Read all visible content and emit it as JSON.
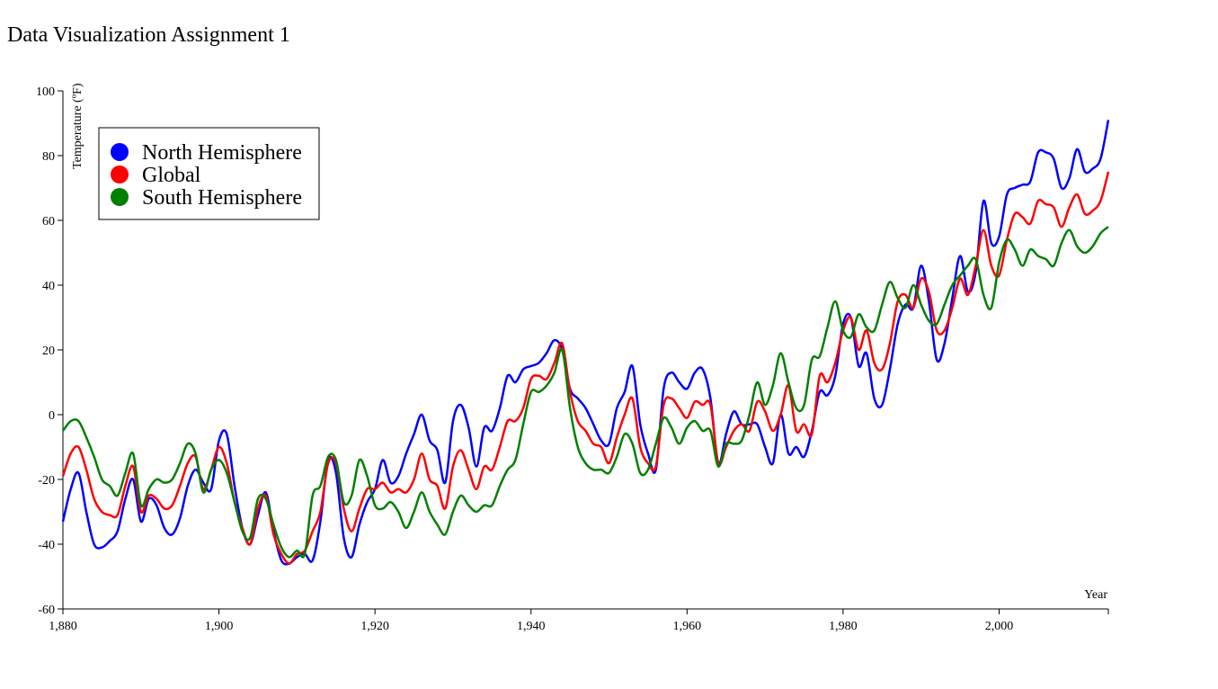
{
  "chart_data": {
    "type": "line",
    "title": "Data Visualization Assignment 1",
    "x_label": "Year",
    "y_label": "Temperature (ºF)",
    "xlim": [
      1880,
      2014
    ],
    "ylim": [
      -60,
      100
    ],
    "xticks": [
      {
        "value": 1880,
        "label": "1,880"
      },
      {
        "value": 1900,
        "label": "1,900"
      },
      {
        "value": 1920,
        "label": "1,920"
      },
      {
        "value": 1940,
        "label": "1,940"
      },
      {
        "value": 1960,
        "label": "1,960"
      },
      {
        "value": 1980,
        "label": "1,980"
      },
      {
        "value": 2000,
        "label": "2,000"
      }
    ],
    "yticks": [
      -60,
      -40,
      -20,
      0,
      20,
      40,
      60,
      80,
      100
    ],
    "legend": "top-left",
    "x": [
      1880,
      1881,
      1882,
      1883,
      1884,
      1885,
      1886,
      1887,
      1888,
      1889,
      1890,
      1891,
      1892,
      1893,
      1894,
      1895,
      1896,
      1897,
      1898,
      1899,
      1900,
      1901,
      1902,
      1903,
      1904,
      1905,
      1906,
      1907,
      1908,
      1909,
      1910,
      1911,
      1912,
      1913,
      1914,
      1915,
      1916,
      1917,
      1918,
      1919,
      1920,
      1921,
      1922,
      1923,
      1924,
      1925,
      1926,
      1927,
      1928,
      1929,
      1930,
      1931,
      1932,
      1933,
      1934,
      1935,
      1936,
      1937,
      1938,
      1939,
      1940,
      1941,
      1942,
      1943,
      1944,
      1945,
      1946,
      1947,
      1948,
      1949,
      1950,
      1951,
      1952,
      1953,
      1954,
      1955,
      1956,
      1957,
      1958,
      1959,
      1960,
      1961,
      1962,
      1963,
      1964,
      1965,
      1966,
      1967,
      1968,
      1969,
      1970,
      1971,
      1972,
      1973,
      1974,
      1975,
      1976,
      1977,
      1978,
      1979,
      1980,
      1981,
      1982,
      1983,
      1984,
      1985,
      1986,
      1987,
      1988,
      1989,
      1990,
      1991,
      1992,
      1993,
      1994,
      1995,
      1996,
      1997,
      1998,
      1999,
      2000,
      2001,
      2002,
      2003,
      2004,
      2005,
      2006,
      2007,
      2008,
      2009,
      2010,
      2011,
      2012,
      2013,
      2014
    ],
    "series": [
      {
        "name": "North Hemisphere",
        "color": "#0000ff",
        "values": [
          -33,
          -23,
          -18,
          -30,
          -40,
          -41,
          -39,
          -36,
          -26,
          -20,
          -33,
          -26,
          -28,
          -35,
          -37,
          -32,
          -22,
          -17,
          -21,
          -23,
          -8,
          -6,
          -22,
          -35,
          -40,
          -31,
          -24,
          -36,
          -45,
          -46,
          -44,
          -43,
          -45,
          -33,
          -14,
          -18,
          -38,
          -44,
          -34,
          -27,
          -23,
          -14,
          -21,
          -19,
          -12,
          -6,
          0,
          -8,
          -11,
          -21,
          -2,
          3,
          -4,
          -16,
          -4,
          -5,
          2,
          12,
          10,
          14,
          15,
          16,
          19,
          23,
          20,
          8,
          5,
          2,
          -3,
          -8,
          -9,
          2,
          7,
          15,
          -3,
          -12,
          -17,
          8,
          13,
          10,
          8,
          13,
          14,
          5,
          -15,
          -6,
          1,
          -3,
          -3,
          -3,
          -10,
          -15,
          0,
          -12,
          -10,
          -13,
          -5,
          7,
          6,
          12,
          28,
          30,
          15,
          19,
          5,
          3,
          14,
          28,
          34,
          33,
          46,
          35,
          17,
          22,
          36,
          49,
          38,
          44,
          66,
          53,
          55,
          68,
          70,
          71,
          72,
          81,
          81,
          79,
          70,
          73,
          82,
          75,
          76,
          79,
          91
        ]
      },
      {
        "name": "Global",
        "color": "#ff0000",
        "values": [
          -19,
          -12,
          -10,
          -17,
          -26,
          -30,
          -31,
          -31,
          -22,
          -16,
          -30,
          -25,
          -26,
          -29,
          -28,
          -22,
          -15,
          -13,
          -23,
          -17,
          -10,
          -15,
          -27,
          -35,
          -40,
          -29,
          -25,
          -37,
          -43,
          -46,
          -43,
          -42,
          -36,
          -30,
          -15,
          -15,
          -29,
          -36,
          -29,
          -23,
          -23,
          -21,
          -24,
          -23,
          -24,
          -20,
          -12,
          -20,
          -22,
          -29,
          -16,
          -11,
          -17,
          -23,
          -16,
          -17,
          -10,
          -2,
          -2,
          2,
          11,
          12,
          11,
          16,
          22,
          7,
          -2,
          -5,
          -9,
          -10,
          -15,
          -7,
          0,
          5,
          -10,
          -15,
          -16,
          3,
          5,
          2,
          -1,
          4,
          3,
          3,
          -15,
          -10,
          -5,
          -3,
          -5,
          4,
          1,
          -5,
          0,
          9,
          -5,
          -3,
          -6,
          12,
          10,
          16,
          26,
          30,
          20,
          26,
          16,
          14,
          22,
          35,
          37,
          33,
          42,
          38,
          26,
          26,
          33,
          42,
          37,
          46,
          57,
          46,
          43,
          54,
          62,
          61,
          59,
          66,
          65,
          64,
          58,
          64,
          68,
          62,
          63,
          66,
          75
        ]
      },
      {
        "name": "South Hemisphere",
        "color": "#008000",
        "values": [
          -5,
          -2,
          -2,
          -7,
          -13,
          -20,
          -22,
          -25,
          -18,
          -12,
          -28,
          -23,
          -20,
          -21,
          -20,
          -15,
          -9,
          -12,
          -24,
          -17,
          -14,
          -18,
          -27,
          -36,
          -38,
          -26,
          -26,
          -34,
          -41,
          -44,
          -42,
          -43,
          -25,
          -22,
          -13,
          -14,
          -27,
          -25,
          -14,
          -19,
          -28,
          -29,
          -27,
          -30,
          -35,
          -30,
          -24,
          -30,
          -34,
          -37,
          -30,
          -25,
          -28,
          -30,
          -28,
          -28,
          -22,
          -17,
          -14,
          -3,
          7,
          7,
          9,
          13,
          20,
          2,
          -10,
          -15,
          -17,
          -17,
          -18,
          -13,
          -6,
          -9,
          -18,
          -17,
          -9,
          -1,
          -4,
          -9,
          -4,
          -2,
          -5,
          -5,
          -16,
          -9,
          -9,
          -8,
          0,
          10,
          3,
          9,
          19,
          10,
          2,
          3,
          17,
          18,
          27,
          35,
          26,
          24,
          31,
          27,
          26,
          34,
          41,
          36,
          33,
          40,
          34,
          29,
          28,
          34,
          40,
          43,
          46,
          48,
          37,
          33,
          47,
          54,
          51,
          46,
          51,
          49,
          48,
          46,
          53,
          57,
          52,
          50,
          52,
          56,
          58
        ]
      }
    ]
  }
}
